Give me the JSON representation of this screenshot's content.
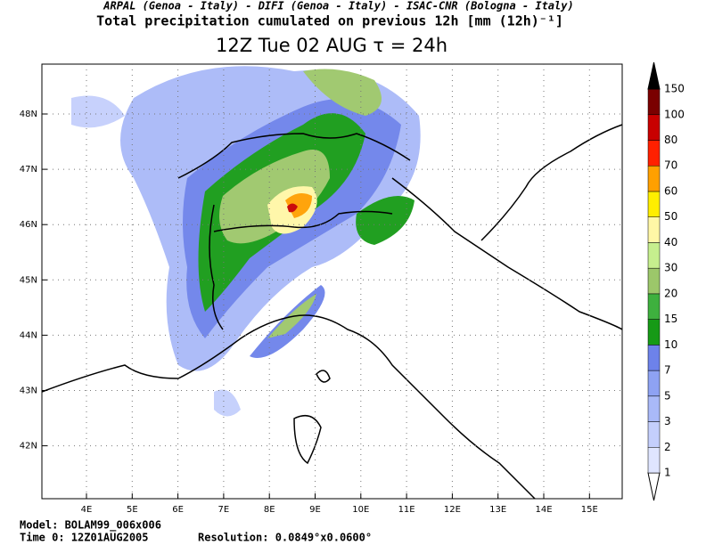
{
  "header": {
    "credits": "ARPAL (Genoa - Italy)  -  DIFI (Genoa - Italy)  -  ISAC-CNR (Bologna - Italy)",
    "title": "Total precipitation cumulated on previous 12h [mm (12h)⁻¹]",
    "subtitle": "12Z Tue 02 AUG  τ = 24h"
  },
  "map": {
    "lat_labels": [
      "48N",
      "47N",
      "46N",
      "45N",
      "44N",
      "43N",
      "42N"
    ],
    "lon_labels": [
      "4E",
      "5E",
      "6E",
      "7E",
      "8E",
      "9E",
      "10E",
      "11E",
      "12E",
      "13E",
      "14E",
      "15E"
    ]
  },
  "legend": {
    "labels": [
      "1",
      "2",
      "3",
      "5",
      "7",
      "10",
      "15",
      "20",
      "30",
      "40",
      "50",
      "60",
      "70",
      "80",
      "100",
      "150"
    ],
    "colors": [
      "#dfe5ff",
      "#c4cffc",
      "#a9b9f8",
      "#8ea2f3",
      "#6d82ea",
      "#169a16",
      "#3eb03e",
      "#9cc76a",
      "#c6ef8e",
      "#fff7a6",
      "#ffee00",
      "#ffa000",
      "#ff2000",
      "#c80000",
      "#7a0000"
    ]
  },
  "footer": {
    "model": "Model: BOLAM99_006x006",
    "time": "Time 0: 12Z01AUG2005",
    "resolution": "Resolution: 0.0849°x0.0600°"
  }
}
